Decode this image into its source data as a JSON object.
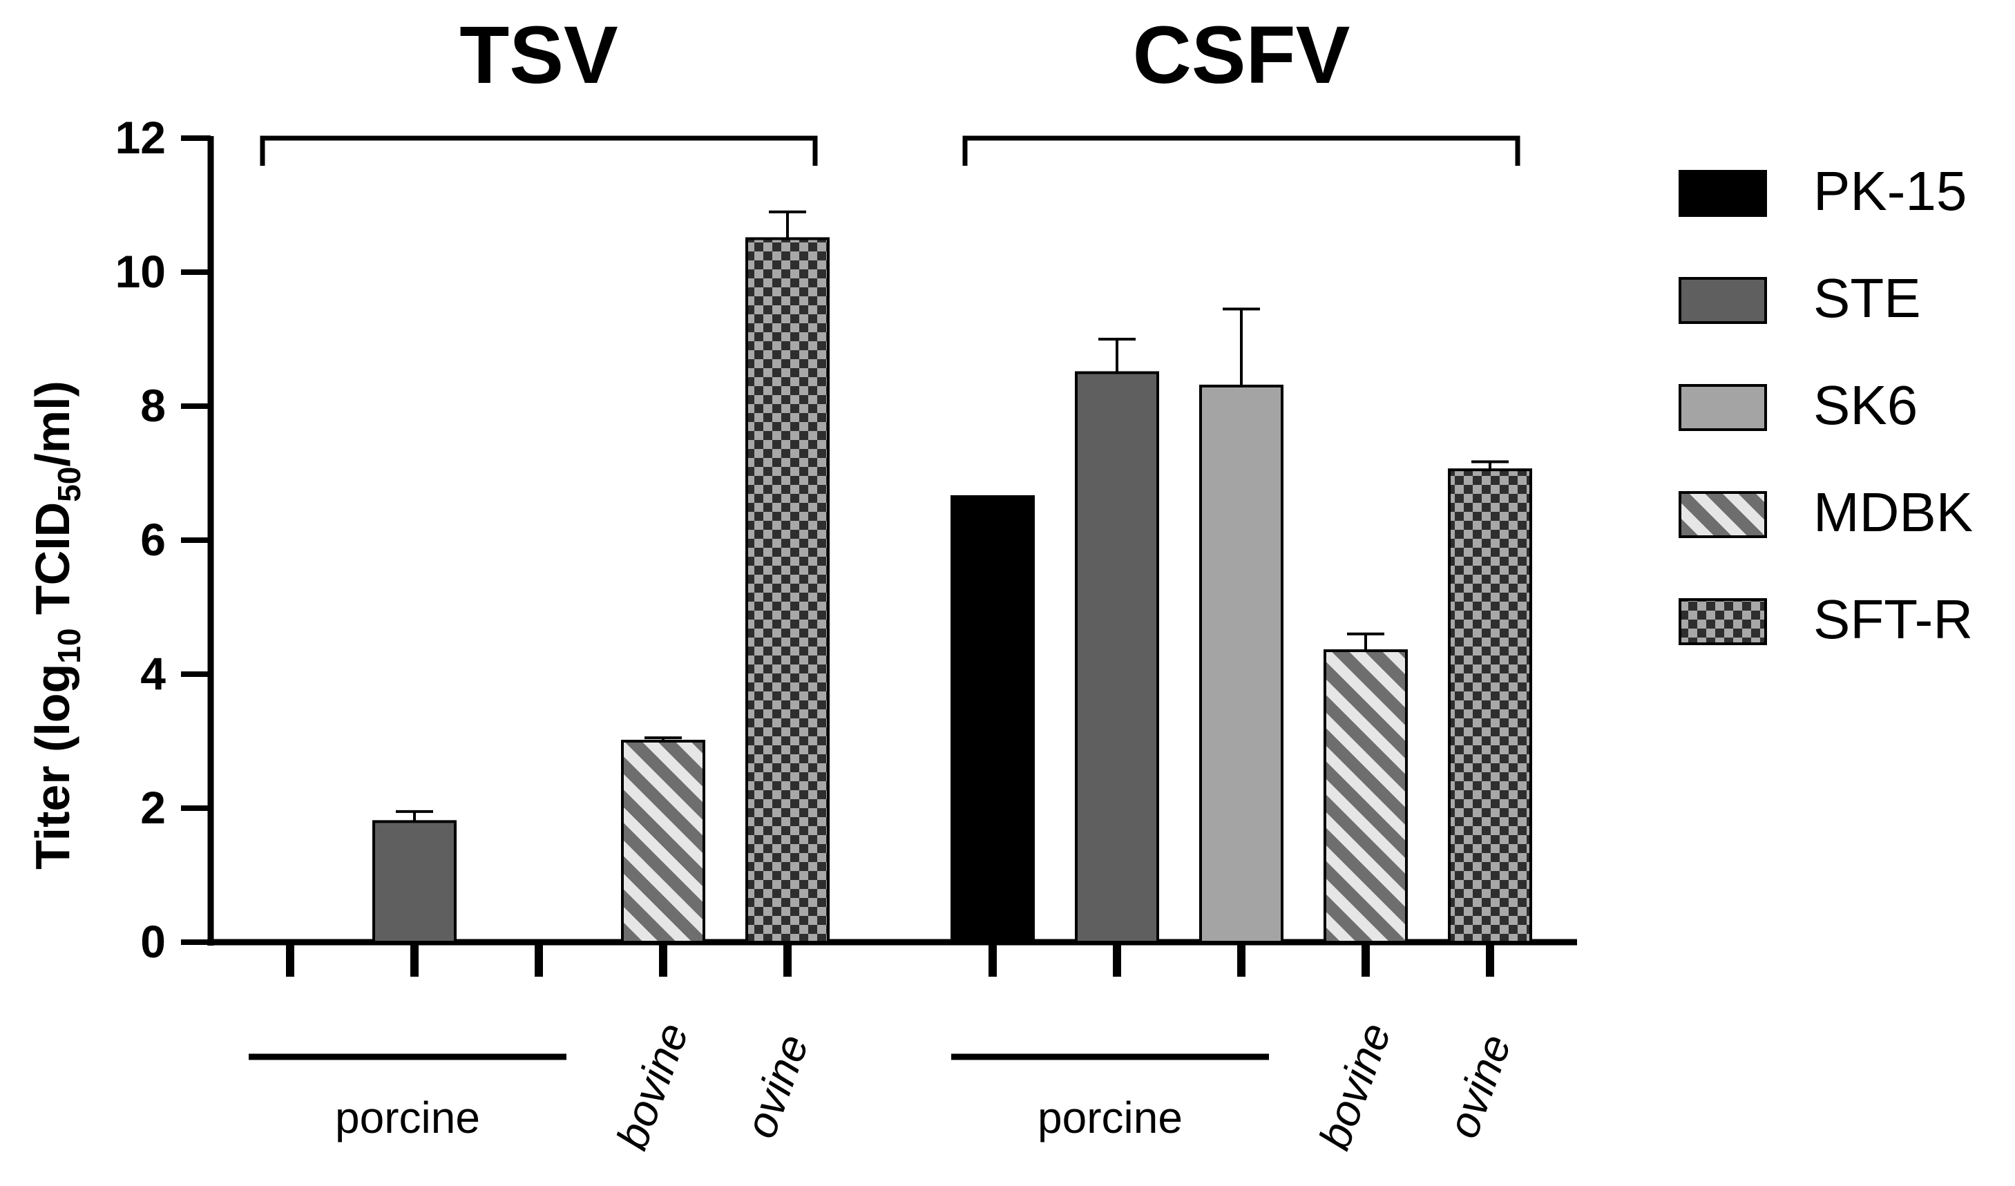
{
  "chart_data": {
    "type": "bar",
    "ylabel_prefix": "Titer (log",
    "ylabel_sub1": "10",
    "ylabel_mid": " TCID",
    "ylabel_sub2": "50",
    "ylabel_suffix": "/ml)",
    "ylim": [
      0,
      12
    ],
    "yticks": [
      "0",
      "2",
      "4",
      "6",
      "8",
      "10",
      "12"
    ],
    "legend": [
      {
        "name": "PK-15",
        "pattern": "solid",
        "color": "#000000"
      },
      {
        "name": "STE",
        "pattern": "solid",
        "color": "#5f5f5f"
      },
      {
        "name": "SK6",
        "pattern": "solid",
        "color": "#a4a4a4"
      },
      {
        "name": "MDBK",
        "pattern": "stripes",
        "color": "#6e6e6e"
      },
      {
        "name": "SFT-R",
        "pattern": "checker",
        "color": "#3a3a3a"
      }
    ],
    "groups": [
      {
        "name": "TSV",
        "values": [
          0,
          1.8,
          0,
          3.0,
          10.5
        ],
        "errors": [
          0,
          0.15,
          0,
          0.05,
          0.4
        ],
        "host_labels": [
          "porcine",
          "bovine",
          "ovine"
        ]
      },
      {
        "name": "CSFV",
        "values": [
          6.65,
          8.5,
          8.3,
          4.35,
          7.05
        ],
        "errors": [
          0,
          0.5,
          1.15,
          0.25,
          0.12
        ],
        "host_labels": [
          "porcine",
          "bovine",
          "ovine"
        ]
      }
    ]
  }
}
